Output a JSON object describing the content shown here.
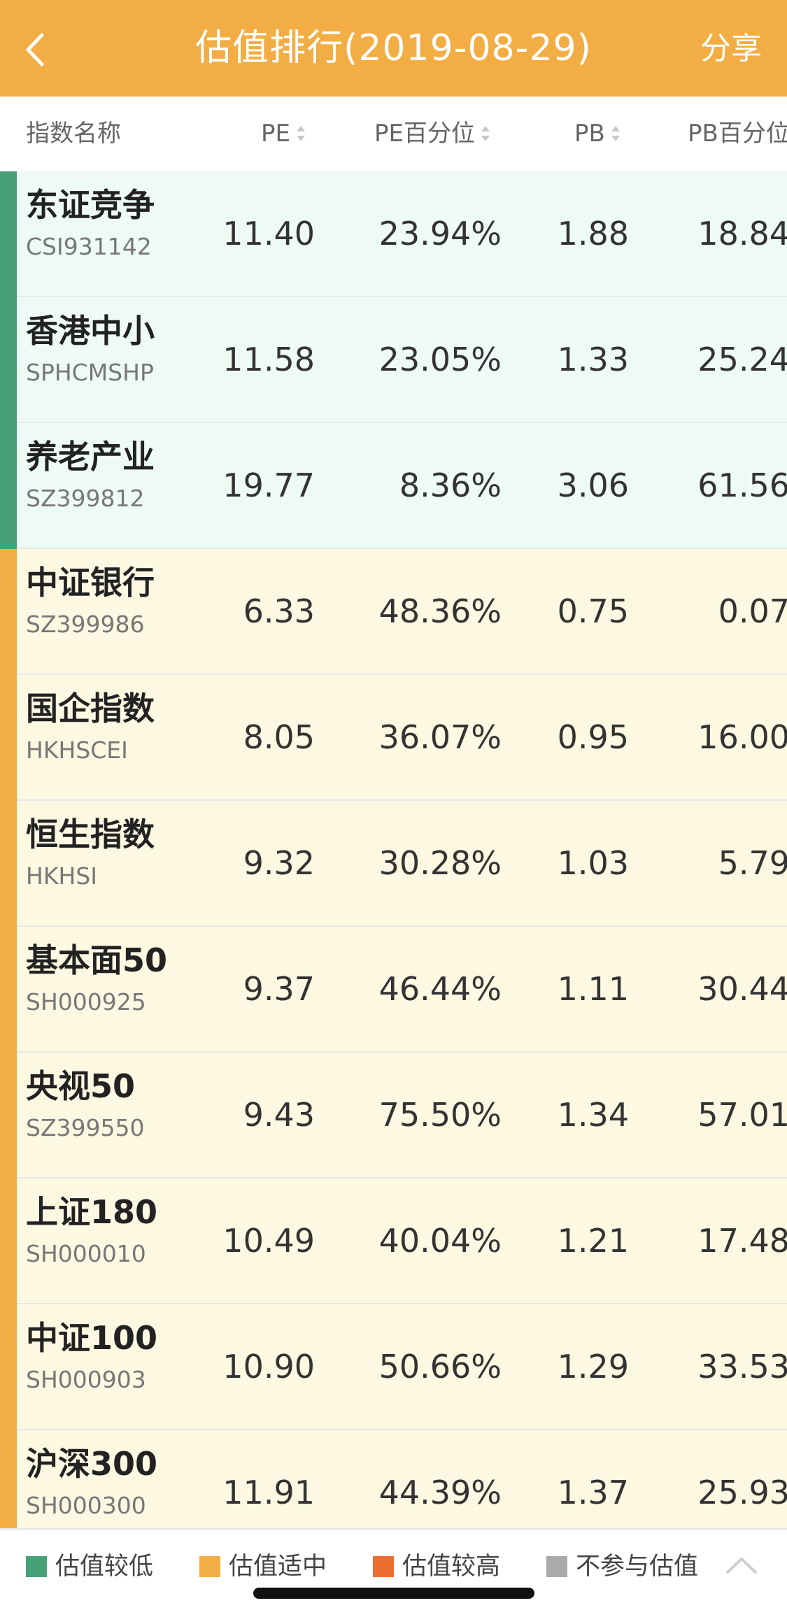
{
  "header": {
    "title": "估值排行(2019-08-29)",
    "share_label": "分享"
  },
  "columns": {
    "name": "指数名称",
    "pe": "PE",
    "pe_percentile": "PE百分位",
    "pb": "PB",
    "pb_percentile": "PB百分位"
  },
  "rows": [
    {
      "name": "东证竞争",
      "code": "CSI931142",
      "pe": "11.40",
      "pe_pct": "23.94%",
      "pb": "1.88",
      "pb_pct": "18.84",
      "level": "low"
    },
    {
      "name": "香港中小",
      "code": "SPHCMSHP",
      "pe": "11.58",
      "pe_pct": "23.05%",
      "pb": "1.33",
      "pb_pct": "25.24",
      "level": "low"
    },
    {
      "name": "养老产业",
      "code": "SZ399812",
      "pe": "19.77",
      "pe_pct": "8.36%",
      "pb": "3.06",
      "pb_pct": "61.56",
      "level": "low"
    },
    {
      "name": "中证银行",
      "code": "SZ399986",
      "pe": "6.33",
      "pe_pct": "48.36%",
      "pb": "0.75",
      "pb_pct": "0.07",
      "level": "mid"
    },
    {
      "name": "国企指数",
      "code": "HKHSCEI",
      "pe": "8.05",
      "pe_pct": "36.07%",
      "pb": "0.95",
      "pb_pct": "16.00",
      "level": "mid"
    },
    {
      "name": "恒生指数",
      "code": "HKHSI",
      "pe": "9.32",
      "pe_pct": "30.28%",
      "pb": "1.03",
      "pb_pct": "5.79",
      "level": "mid"
    },
    {
      "name": "基本面50",
      "code": "SH000925",
      "pe": "9.37",
      "pe_pct": "46.44%",
      "pb": "1.11",
      "pb_pct": "30.44",
      "level": "mid"
    },
    {
      "name": "央视50",
      "code": "SZ399550",
      "pe": "9.43",
      "pe_pct": "75.50%",
      "pb": "1.34",
      "pb_pct": "57.01",
      "level": "mid"
    },
    {
      "name": "上证180",
      "code": "SH000010",
      "pe": "10.49",
      "pe_pct": "40.04%",
      "pb": "1.21",
      "pb_pct": "17.48",
      "level": "mid"
    },
    {
      "name": "中证100",
      "code": "SH000903",
      "pe": "10.90",
      "pe_pct": "50.66%",
      "pb": "1.29",
      "pb_pct": "33.53",
      "level": "mid"
    },
    {
      "name": "沪深300",
      "code": "SH000300",
      "pe": "11.91",
      "pe_pct": "44.39%",
      "pb": "1.37",
      "pb_pct": "25.93",
      "level": "mid"
    }
  ],
  "legend": [
    {
      "label": "估值较低",
      "color": "#47a078"
    },
    {
      "label": "估值适中",
      "color": "#f2ae44"
    },
    {
      "label": "估值较高",
      "color": "#ec6f32"
    },
    {
      "label": "不参与估值",
      "color": "#aaaaaa"
    }
  ],
  "colors": {
    "accent": "#f2ae44",
    "low": "#47a078",
    "mid": "#f2ae44",
    "high": "#ec6f32",
    "excluded": "#aaaaaa"
  }
}
